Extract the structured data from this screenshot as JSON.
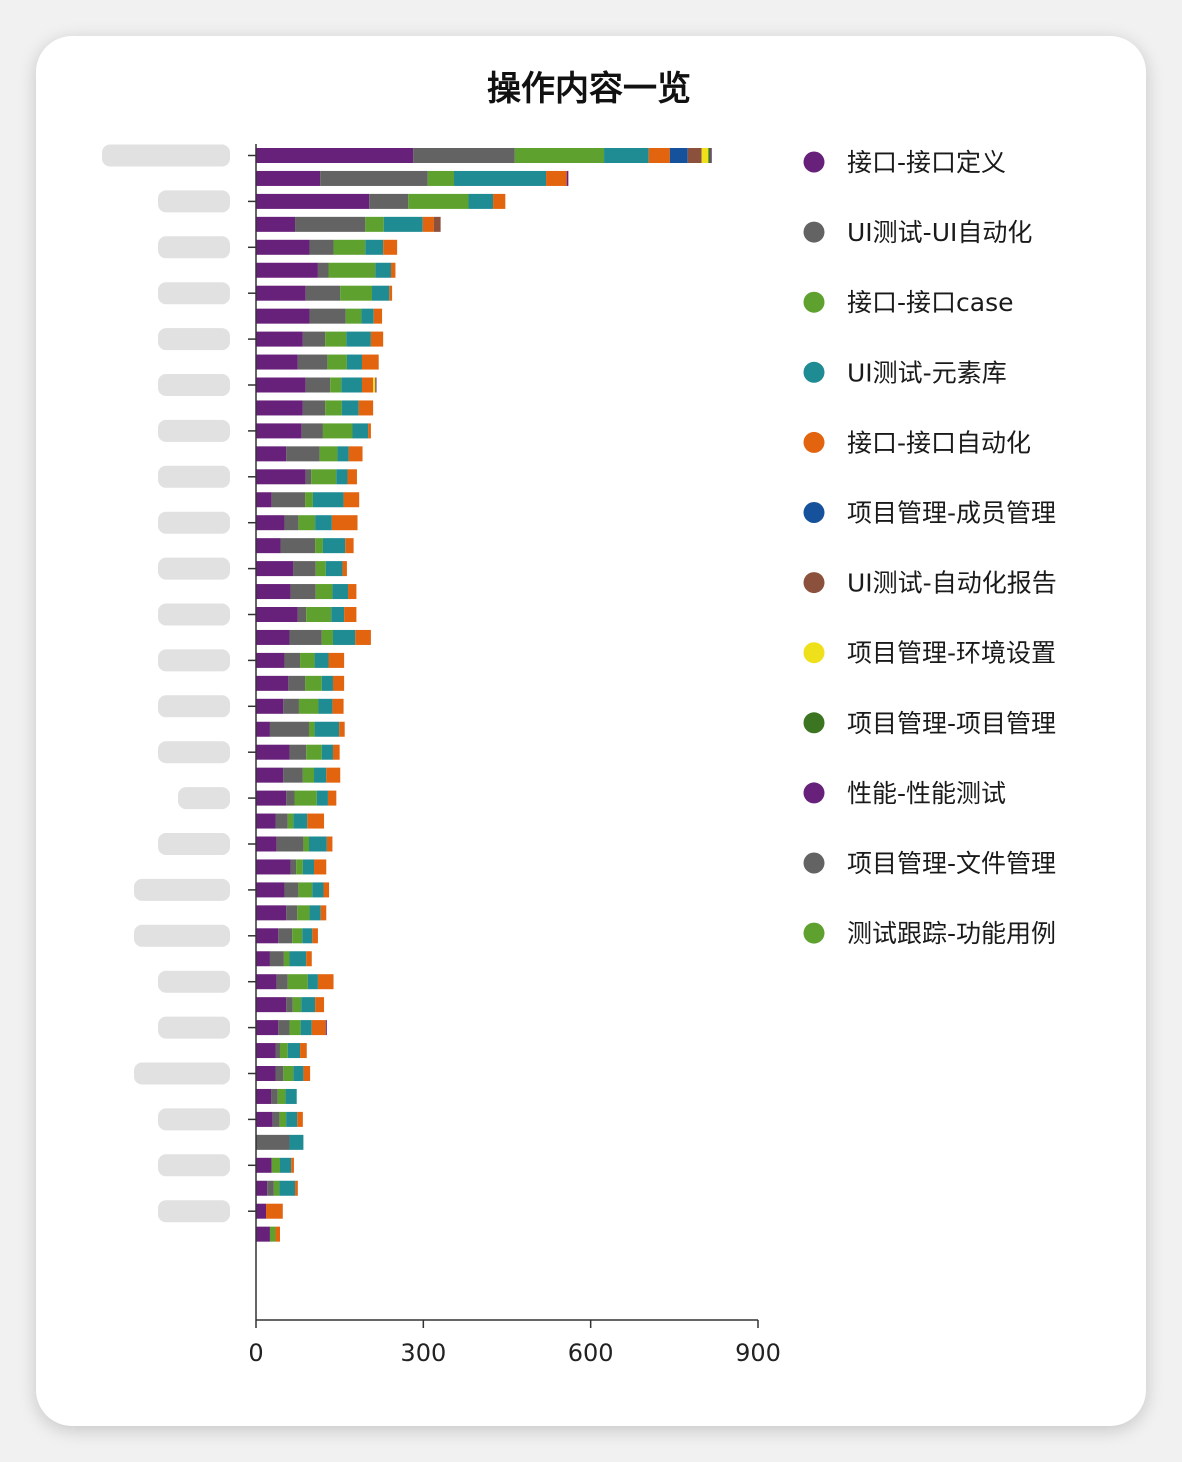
{
  "chart_data": {
    "type": "bar",
    "orientation": "horizontal",
    "stacked": true,
    "title": "操作内容一览",
    "xlim": [
      0,
      900
    ],
    "x_ticks": [
      "0",
      "300",
      "600",
      "900"
    ],
    "legend_position": "right",
    "grid": false,
    "categories_note_hidden": true,
    "series": [
      {
        "name": "接口-接口定义",
        "color": "#68217a",
        "values": [
          282,
          115,
          203,
          70,
          96,
          111,
          89,
          96,
          84,
          75,
          89,
          84,
          82,
          54,
          89,
          28,
          51,
          44,
          67,
          62,
          75,
          60,
          51,
          58,
          49,
          25,
          60,
          49,
          54,
          35,
          37,
          62,
          51,
          54,
          40,
          25,
          37,
          54,
          40,
          35,
          35,
          27,
          30,
          0,
          28,
          20,
          18,
          25
        ]
      },
      {
        "name": "UI测试-UI自动化",
        "color": "#636363",
        "values": [
          182,
          193,
          70,
          126,
          43,
          19,
          62,
          65,
          40,
          53,
          44,
          40,
          38,
          60,
          10,
          60,
          25,
          62,
          40,
          45,
          15,
          58,
          28,
          30,
          28,
          70,
          30,
          35,
          15,
          22,
          48,
          10,
          25,
          20,
          25,
          25,
          20,
          12,
          20,
          8,
          14,
          12,
          12,
          60,
          0,
          12,
          0,
          0
        ]
      },
      {
        "name": "接口-接口case",
        "color": "#5fa12e",
        "values": [
          160,
          47,
          108,
          33,
          57,
          84,
          57,
          28,
          38,
          35,
          20,
          30,
          53,
          32,
          45,
          14,
          30,
          14,
          18,
          30,
          45,
          20,
          26,
          30,
          35,
          10,
          28,
          20,
          40,
          10,
          10,
          12,
          25,
          22,
          18,
          10,
          36,
          15,
          20,
          14,
          18,
          14,
          12,
          0,
          15,
          10,
          0,
          10
        ]
      },
      {
        "name": "UI测试-元素库",
        "color": "#1f8b93",
        "values": [
          80,
          165,
          44,
          70,
          32,
          28,
          31,
          22,
          44,
          27,
          37,
          30,
          28,
          20,
          20,
          55,
          30,
          40,
          30,
          28,
          23,
          40,
          25,
          20,
          25,
          44,
          20,
          22,
          20,
          25,
          32,
          20,
          20,
          20,
          18,
          30,
          18,
          25,
          20,
          22,
          18,
          20,
          20,
          25,
          20,
          28,
          0,
          0
        ]
      },
      {
        "name": "接口-接口自动化",
        "color": "#e2640e",
        "values": [
          38,
          37,
          22,
          20,
          25,
          8,
          5,
          15,
          22,
          30,
          20,
          26,
          5,
          25,
          17,
          28,
          46,
          15,
          8,
          15,
          22,
          28,
          28,
          20,
          20,
          10,
          12,
          25,
          15,
          30,
          10,
          22,
          10,
          10,
          10,
          10,
          28,
          16,
          25,
          12,
          12,
          0,
          10,
          0,
          5,
          5,
          30,
          8
        ]
      },
      {
        "name": "项目管理-成员管理",
        "color": "#16529c",
        "values": [
          32,
          0,
          0,
          0,
          0,
          0,
          0,
          0,
          0,
          0,
          0,
          0,
          0,
          0,
          0,
          0,
          0,
          0,
          0,
          0,
          0,
          0,
          0,
          0,
          0,
          0,
          0,
          0,
          0,
          0,
          0,
          0,
          0,
          0,
          0,
          0,
          0,
          0,
          0,
          0,
          0,
          0,
          0,
          0,
          0,
          0,
          0,
          0
        ]
      },
      {
        "name": "UI测试-自动化报告",
        "color": "#8c513c",
        "values": [
          25,
          0,
          0,
          12,
          0,
          0,
          0,
          0,
          0,
          0,
          0,
          0,
          0,
          0,
          0,
          0,
          0,
          0,
          0,
          0,
          0,
          0,
          0,
          0,
          0,
          0,
          0,
          0,
          0,
          0,
          0,
          0,
          0,
          0,
          0,
          0,
          0,
          0,
          0,
          0,
          0,
          0,
          0,
          0,
          0,
          0,
          0,
          0
        ]
      },
      {
        "name": "项目管理-环境设置",
        "color": "#efe01c",
        "values": [
          12,
          0,
          0,
          0,
          0,
          0,
          0,
          0,
          0,
          0,
          4,
          0,
          0,
          0,
          0,
          0,
          0,
          0,
          0,
          0,
          0,
          0,
          0,
          0,
          0,
          0,
          0,
          0,
          0,
          0,
          0,
          0,
          0,
          0,
          0,
          0,
          0,
          0,
          0,
          0,
          0,
          0,
          0,
          0,
          0,
          0,
          0,
          0
        ]
      },
      {
        "name": "项目管理-项目管理",
        "color": "#3b7521",
        "values": [
          4,
          0,
          0,
          0,
          0,
          0,
          0,
          0,
          0,
          0,
          0,
          0,
          0,
          0,
          0,
          0,
          0,
          0,
          0,
          0,
          0,
          0,
          0,
          0,
          0,
          0,
          0,
          0,
          0,
          0,
          0,
          0,
          0,
          0,
          0,
          0,
          0,
          0,
          0,
          0,
          0,
          0,
          0,
          0,
          0,
          0,
          0,
          0
        ]
      },
      {
        "name": "性能-性能测试",
        "color": "#68217a",
        "values": [
          2,
          3,
          0,
          0,
          0,
          0,
          0,
          0,
          0,
          0,
          2,
          0,
          0,
          0,
          0,
          0,
          0,
          0,
          0,
          0,
          0,
          0,
          0,
          0,
          0,
          0,
          0,
          0,
          0,
          0,
          0,
          0,
          0,
          0,
          0,
          0,
          0,
          0,
          2,
          0,
          0,
          0,
          0,
          0,
          0,
          0,
          0,
          0
        ]
      },
      {
        "name": "项目管理-文件管理",
        "color": "#636363",
        "values": [
          0,
          0,
          0,
          0,
          0,
          0,
          0,
          0,
          0,
          0,
          0,
          0,
          0,
          0,
          0,
          0,
          0,
          0,
          0,
          0,
          0,
          0,
          0,
          0,
          0,
          0,
          0,
          0,
          0,
          0,
          0,
          0,
          0,
          0,
          0,
          0,
          0,
          0,
          0,
          0,
          0,
          0,
          0,
          0,
          0,
          0,
          0,
          0
        ]
      },
      {
        "name": "测试跟踪-功能用例",
        "color": "#5fa12e",
        "values": [
          0,
          0,
          0,
          0,
          0,
          0,
          0,
          0,
          0,
          0,
          0,
          0,
          0,
          0,
          0,
          0,
          0,
          0,
          0,
          0,
          0,
          0,
          0,
          0,
          0,
          0,
          0,
          0,
          0,
          0,
          0,
          0,
          0,
          0,
          0,
          0,
          0,
          0,
          0,
          0,
          0,
          0,
          0,
          0,
          0,
          0,
          0,
          0
        ]
      }
    ]
  }
}
